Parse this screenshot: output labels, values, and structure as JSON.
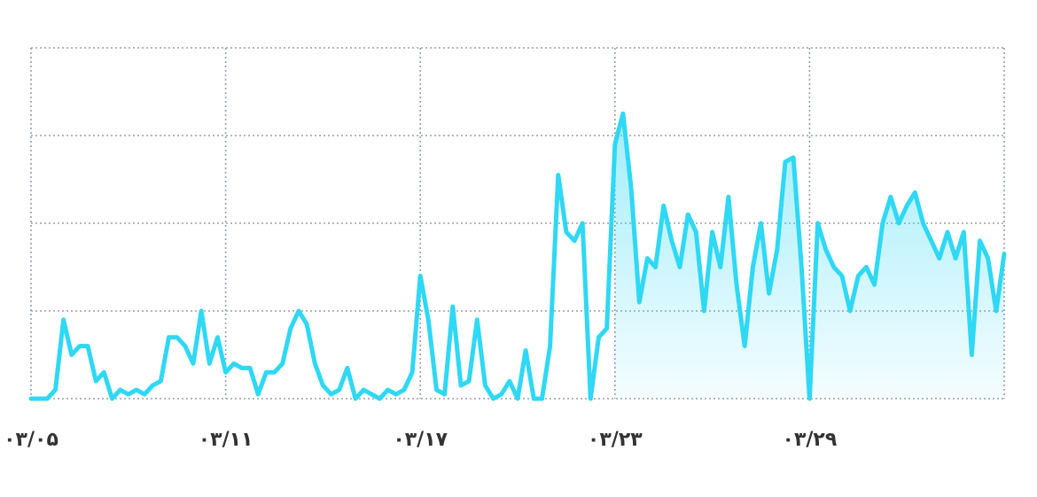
{
  "chart_data": {
    "type": "line",
    "x": [
      0,
      0.25,
      0.5,
      0.75,
      1,
      1.25,
      1.5,
      1.75,
      2,
      2.25,
      2.5,
      2.75,
      3,
      3.25,
      3.5,
      3.75,
      4,
      4.25,
      4.5,
      4.75,
      5,
      5.25,
      5.5,
      5.75,
      6,
      6.25,
      6.5,
      6.75,
      7,
      7.25,
      7.5,
      7.75,
      8,
      8.25,
      8.5,
      8.75,
      9,
      9.25,
      9.5,
      9.75,
      10,
      10.25,
      10.5,
      10.75,
      11,
      11.25,
      11.5,
      11.75,
      12,
      12.25,
      12.5,
      12.75,
      13,
      13.25,
      13.5,
      13.75,
      14,
      14.25,
      14.5,
      14.75,
      15,
      15.25,
      15.5,
      15.75,
      16,
      16.25,
      16.5,
      16.75,
      17,
      17.25,
      17.5,
      17.75,
      18,
      18.25,
      18.5,
      18.75,
      19,
      19.25,
      19.5,
      19.75,
      20,
      20.25,
      20.5,
      20.75,
      21,
      21.25,
      21.5,
      21.75,
      22,
      22.25,
      22.5,
      22.75,
      23,
      23.25,
      23.5,
      23.75,
      24,
      24.25,
      24.5,
      24.75,
      25,
      25.25,
      25.5,
      25.75,
      26,
      26.25,
      26.5,
      26.75,
      27,
      27.25,
      27.5,
      27.75,
      28,
      28.25,
      28.5,
      28.75,
      29,
      29.25,
      29.5,
      29.75,
      30
    ],
    "series": [
      {
        "color": "#2fd8f4",
        "values": [
          0,
          0,
          0,
          0.1,
          0.9,
          0.5,
          0.6,
          0.6,
          0.2,
          0.3,
          0,
          0.1,
          0.05,
          0.1,
          0.05,
          0.15,
          0.2,
          0.7,
          0.7,
          0.6,
          0.4,
          1.0,
          0.4,
          0.7,
          0.3,
          0.4,
          0.35,
          0.35,
          0.05,
          0.3,
          0.3,
          0.4,
          0.8,
          1.0,
          0.85,
          0.4,
          0.15,
          0.05,
          0.1,
          0.35,
          0,
          0.1,
          0.05,
          0,
          0.1,
          0.05,
          0.1,
          0.3,
          1.4,
          0.9,
          0.1,
          0.05,
          1.05,
          0.15,
          0.2,
          0.9,
          0.15,
          0,
          0.05,
          0.2,
          0,
          0.55,
          0,
          0,
          0.6,
          2.55,
          1.9,
          1.8,
          2.0,
          0,
          0.7,
          0.8,
          2.9,
          3.25,
          2.4,
          1.1,
          1.6,
          1.5,
          2.2,
          1.8,
          1.5,
          2.1,
          1.9,
          1.0,
          1.9,
          1.5,
          2.3,
          1.3,
          0.6,
          1.5,
          2.0,
          1.2,
          1.7,
          2.7,
          2.75,
          1.5,
          0,
          2.0,
          1.7,
          1.5,
          1.4,
          1.0,
          1.4,
          1.5,
          1.3,
          2.0,
          2.3,
          2.0,
          2.2,
          2.35,
          2.0,
          1.8,
          1.6,
          1.9,
          1.6,
          1.9,
          0.5,
          1.8,
          1.6,
          1.0,
          1.65
        ]
      }
    ],
    "xlim": [
      0,
      30
    ],
    "xticks": [
      {
        "value": 0,
        "label": "۰۳/۰۵"
      },
      {
        "value": 6,
        "label": "۰۳/۱۱"
      },
      {
        "value": 12,
        "label": "۰۳/۱۷"
      },
      {
        "value": 18,
        "label": "۰۳/۲۳"
      },
      {
        "value": 24,
        "label": "۰۳/۲۹"
      },
      30
    ],
    "ylim": [
      0,
      4
    ],
    "yticks": [
      0,
      1,
      2,
      3,
      4
    ],
    "grid": true
  }
}
